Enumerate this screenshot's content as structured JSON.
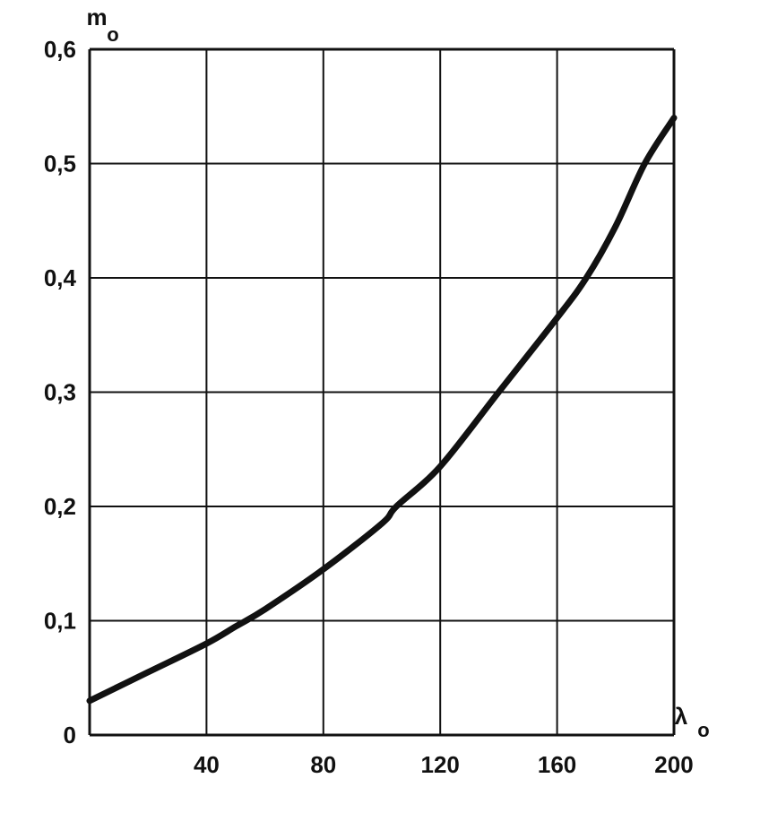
{
  "chart_data": {
    "type": "line",
    "x_axis": {
      "label_main": "λ",
      "label_sub": "o",
      "range": [
        0,
        200
      ],
      "ticks": [
        0,
        40,
        80,
        120,
        160,
        200
      ],
      "tick_labels": [
        "40",
        "80",
        "120",
        "160",
        "200"
      ]
    },
    "y_axis": {
      "label_main": "m",
      "label_sub": "o",
      "range": [
        0,
        0.6
      ],
      "ticks": [
        0,
        0.1,
        0.2,
        0.3,
        0.4,
        0.5,
        0.6
      ],
      "tick_labels": [
        "0",
        "0,1",
        "0,2",
        "0,3",
        "0,4",
        "0,5",
        "0,6"
      ]
    },
    "grid": true,
    "series": [
      {
        "x": [
          0,
          20,
          40,
          50,
          60,
          80,
          100,
          105,
          120,
          140,
          160,
          170,
          180,
          190,
          200
        ],
        "y": [
          0.03,
          0.055,
          0.08,
          0.095,
          0.11,
          0.145,
          0.185,
          0.2,
          0.235,
          0.3,
          0.365,
          0.4,
          0.445,
          0.5,
          0.54
        ]
      }
    ],
    "colors": {
      "line": "#111111",
      "grid": "#111111",
      "background": "#ffffff"
    }
  }
}
